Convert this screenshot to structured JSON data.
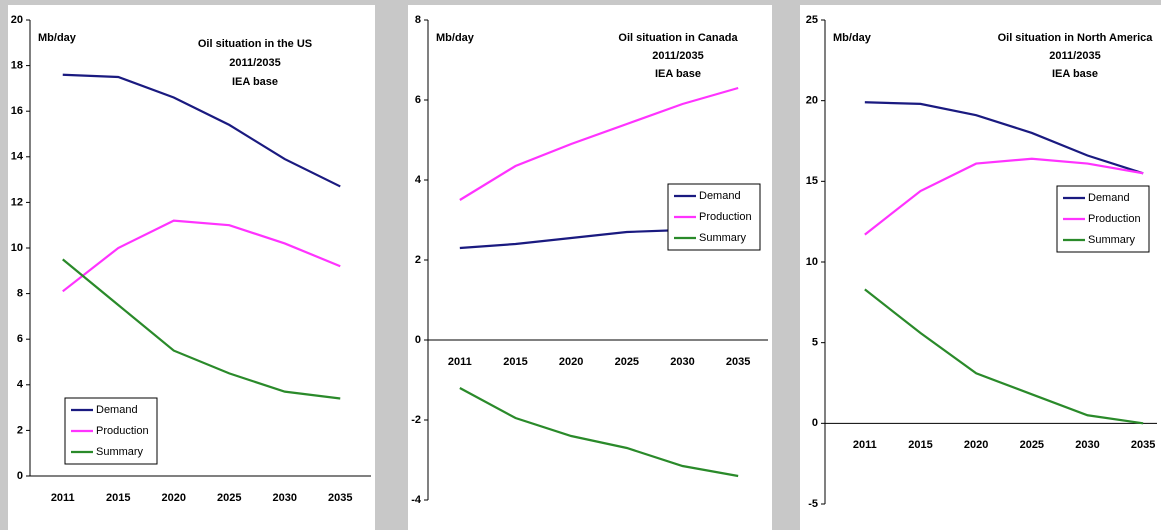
{
  "chart_data": [
    {
      "type": "line",
      "title": "Oil situation in the US",
      "subtitle": [
        "2011/2035",
        "IEA base"
      ],
      "ylabel": "Mb/day",
      "categories": [
        "2011",
        "2015",
        "2020",
        "2025",
        "2030",
        "2035"
      ],
      "series": [
        {
          "name": "Demand",
          "color": "#1a1a80",
          "values": [
            17.6,
            17.5,
            16.6,
            15.4,
            13.9,
            12.7
          ]
        },
        {
          "name": "Production",
          "color": "#ff33ff",
          "values": [
            8.1,
            10.0,
            11.2,
            11.0,
            10.2,
            9.2
          ]
        },
        {
          "name": "Summary",
          "color": "#2a8a2a",
          "values": [
            9.5,
            7.5,
            5.5,
            4.5,
            3.7,
            3.4
          ]
        }
      ],
      "ylim": [
        0,
        20
      ],
      "yticks": [
        0,
        2,
        4,
        6,
        8,
        10,
        12,
        14,
        16,
        18,
        20
      ],
      "legend": "lower left"
    },
    {
      "type": "line",
      "title": "Oil situation in Canada",
      "subtitle": [
        "2011/2035",
        "IEA base"
      ],
      "ylabel": "Mb/day",
      "categories": [
        "2011",
        "2015",
        "2020",
        "2025",
        "2030",
        "2035"
      ],
      "series": [
        {
          "name": "Demand",
          "color": "#1a1a80",
          "values": [
            2.3,
            2.4,
            2.55,
            2.7,
            2.75,
            2.9
          ]
        },
        {
          "name": "Production",
          "color": "#ff33ff",
          "values": [
            3.5,
            4.35,
            4.9,
            5.4,
            5.9,
            6.3
          ]
        },
        {
          "name": "Summary",
          "color": "#2a8a2a",
          "values": [
            -1.2,
            -1.95,
            -2.4,
            -2.7,
            -3.15,
            -3.4
          ]
        }
      ],
      "ylim": [
        -4,
        8
      ],
      "yticks": [
        -4,
        -2,
        0,
        2,
        4,
        6,
        8
      ],
      "legend": "center right"
    },
    {
      "type": "line",
      "title": "Oil situation in North America",
      "subtitle": [
        "2011/2035",
        "IEA base"
      ],
      "ylabel": "Mb/day",
      "categories": [
        "2011",
        "2015",
        "2020",
        "2025",
        "2030",
        "2035"
      ],
      "series": [
        {
          "name": "Demand",
          "color": "#1a1a80",
          "values": [
            19.9,
            19.8,
            19.1,
            18.0,
            16.6,
            15.5
          ]
        },
        {
          "name": "Production",
          "color": "#ff33ff",
          "values": [
            11.7,
            14.4,
            16.1,
            16.4,
            16.1,
            15.5
          ]
        },
        {
          "name": "Summary",
          "color": "#2a8a2a",
          "values": [
            8.3,
            5.6,
            3.1,
            1.8,
            0.5,
            0.0
          ]
        }
      ],
      "ylim": [
        -5,
        25
      ],
      "yticks": [
        -5,
        0,
        5,
        10,
        15,
        20,
        25
      ],
      "legend": "center right"
    }
  ]
}
